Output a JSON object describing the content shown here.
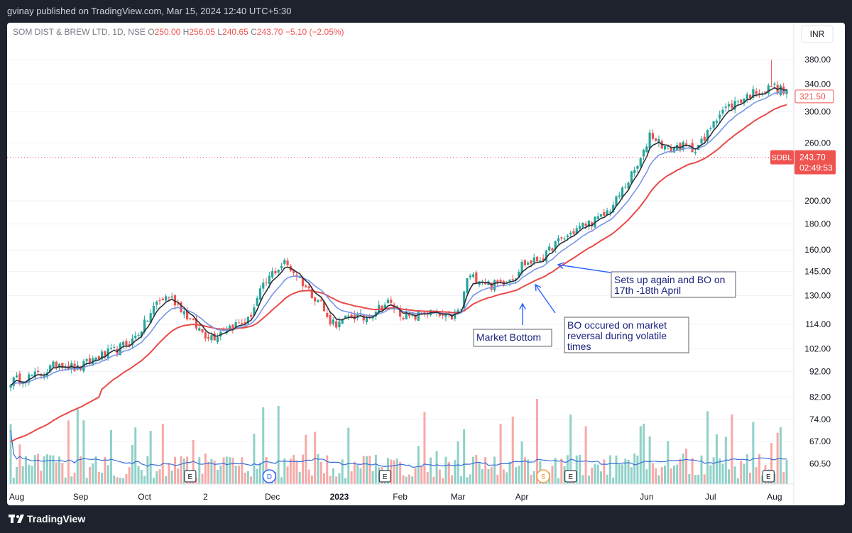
{
  "header": {
    "publish_line": "gvinay published on TradingView.com, Mar 15, 2024 12:40 UTC+5:30"
  },
  "footer": {
    "brand": "TradingView"
  },
  "colors": {
    "up": "#26a69a",
    "down": "#ef5350",
    "up_vol": "#8fd1c8",
    "down_vol": "#f7a9a7",
    "ema_fast": "#2a2e39",
    "ema_mid": "#7896e6",
    "ema_slow": "#e84a48",
    "vol_ma": "#3a6ed8",
    "annotation": "#1a237e",
    "arrow": "#2962ff"
  },
  "chart_data": {
    "type": "candlestick",
    "title": "SOM DIST & BREW LTD, 1D, NSE",
    "ohlc_legend": [
      {
        "label": "O",
        "value": "250.00"
      },
      {
        "label": "H",
        "value": "256.05"
      },
      {
        "label": "L",
        "value": "240.65"
      },
      {
        "label": "C",
        "value": "243.70"
      }
    ],
    "change": "−5.10 (−2.05%)",
    "currency": "INR",
    "y_scale": "log",
    "ylim": [
      57,
      395
    ],
    "y_ticks": [
      "380.00",
      "340.00",
      "300.00",
      "260.00",
      "200.00",
      "180.00",
      "160.00",
      "145.00",
      "130.00",
      "114.00",
      "102.00",
      "92.00",
      "82.00",
      "74.00",
      "67.00",
      "60.50"
    ],
    "x_ticks": [
      {
        "label": "Aug",
        "i": 2
      },
      {
        "label": "Sep",
        "i": 23
      },
      {
        "label": "Oct",
        "i": 44
      },
      {
        "label": "2",
        "i": 64
      },
      {
        "label": "Dec",
        "i": 86
      },
      {
        "label": "2023",
        "i": 108
      },
      {
        "label": "Feb",
        "i": 128
      },
      {
        "label": "Mar",
        "i": 147
      },
      {
        "label": "Apr",
        "i": 168
      },
      {
        "label": "Jun",
        "i": 209
      },
      {
        "label": "Jul",
        "i": 230
      },
      {
        "label": "Aug",
        "i": 251
      }
    ],
    "bars": 256,
    "close_anchors": [
      [
        0,
        88
      ],
      [
        10,
        91
      ],
      [
        16,
        96
      ],
      [
        22,
        93
      ],
      [
        28,
        98
      ],
      [
        34,
        101
      ],
      [
        40,
        106
      ],
      [
        44,
        114
      ],
      [
        48,
        126
      ],
      [
        52,
        130
      ],
      [
        56,
        123
      ],
      [
        60,
        114
      ],
      [
        64,
        109
      ],
      [
        67,
        108
      ],
      [
        70,
        112
      ],
      [
        74,
        114
      ],
      [
        78,
        116
      ],
      [
        82,
        132
      ],
      [
        86,
        144
      ],
      [
        90,
        151
      ],
      [
        94,
        143
      ],
      [
        98,
        133
      ],
      [
        102,
        126
      ],
      [
        104,
        117
      ],
      [
        108,
        114
      ],
      [
        112,
        119
      ],
      [
        116,
        117
      ],
      [
        120,
        122
      ],
      [
        124,
        126
      ],
      [
        128,
        120
      ],
      [
        132,
        117
      ],
      [
        136,
        121
      ],
      [
        140,
        119
      ],
      [
        144,
        117
      ],
      [
        148,
        122
      ],
      [
        150,
        141
      ],
      [
        154,
        141
      ],
      [
        158,
        136
      ],
      [
        162,
        139
      ],
      [
        166,
        143
      ],
      [
        168,
        150
      ],
      [
        172,
        152
      ],
      [
        176,
        156
      ],
      [
        178,
        163
      ],
      [
        182,
        169
      ],
      [
        186,
        176
      ],
      [
        190,
        181
      ],
      [
        194,
        185
      ],
      [
        198,
        196
      ],
      [
        202,
        215
      ],
      [
        206,
        234
      ],
      [
        208,
        248
      ],
      [
        210,
        272
      ],
      [
        213,
        262
      ],
      [
        216,
        252
      ],
      [
        220,
        257
      ],
      [
        224,
        253
      ],
      [
        228,
        263
      ],
      [
        231,
        290
      ],
      [
        234,
        302
      ],
      [
        238,
        312
      ],
      [
        242,
        322
      ],
      [
        246,
        332
      ],
      [
        248,
        328
      ],
      [
        250,
        338
      ],
      [
        252,
        333
      ],
      [
        255,
        327
      ]
    ],
    "reference_price": "321.50",
    "current_price": {
      "ticker": "SDBL",
      "price": "243.70",
      "countdown": "02:49:53"
    },
    "event_markers": [
      {
        "label": "E",
        "type": "earnings",
        "i": 59
      },
      {
        "label": "D",
        "type": "dividend",
        "i": 85
      },
      {
        "label": "E",
        "type": "earnings",
        "i": 123
      },
      {
        "label": "S",
        "type": "split",
        "i": 175
      },
      {
        "label": "E",
        "type": "earnings",
        "i": 184
      },
      {
        "label": "E",
        "type": "earnings",
        "i": 249
      }
    ],
    "annotations": [
      {
        "text": "Market Bottom",
        "lines": [
          "Market Bottom"
        ]
      },
      {
        "text": "BO occured on market reversal during volatile times",
        "lines": [
          "BO occured on market",
          "reversal during volatile",
          "times"
        ]
      },
      {
        "text": "Sets up again and BO on 17th -18th April",
        "lines": [
          "Sets up again and BO on",
          "17th -18th April"
        ]
      }
    ]
  }
}
